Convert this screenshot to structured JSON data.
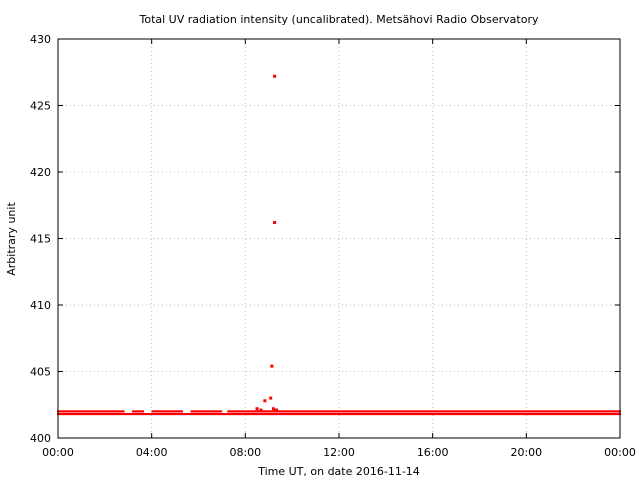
{
  "chart_data": {
    "type": "scatter",
    "title": "Total UV radiation intensity (uncalibrated). Metsähovi Radio Observatory",
    "xlabel": "Time UT, on date 2016-11-14",
    "ylabel": "Arbitrary unit",
    "xlim": [
      "00:00",
      "24:00"
    ],
    "ylim": [
      400,
      430
    ],
    "x_tick_labels": [
      "00:00",
      "04:00",
      "08:00",
      "12:00",
      "16:00",
      "20:00",
      "00:00"
    ],
    "y_tick_labels": [
      "400",
      "405",
      "410",
      "415",
      "420",
      "425",
      "430"
    ],
    "grid": true,
    "marker_color": "#ff0000",
    "series": [
      {
        "baseline": {
          "value": 401.8,
          "upper": 402.0,
          "from": "00:00",
          "to": "24:00",
          "gaps": [
            [
              "02:50",
              "03:10"
            ],
            [
              "03:40",
              "04:00"
            ],
            [
              "05:20",
              "05:40"
            ],
            [
              "07:00",
              "07:15"
            ]
          ]
        },
        "points": [
          {
            "x": "08:30",
            "y": 402.2
          },
          {
            "x": "08:40",
            "y": 402.1
          },
          {
            "x": "08:50",
            "y": 402.8
          },
          {
            "x": "09:05",
            "y": 403.0
          },
          {
            "x": "09:08",
            "y": 405.4
          },
          {
            "x": "09:12",
            "y": 402.2
          },
          {
            "x": "09:15",
            "y": 416.2
          },
          {
            "x": "09:15",
            "y": 427.2
          },
          {
            "x": "09:20",
            "y": 402.1
          }
        ]
      }
    ]
  }
}
